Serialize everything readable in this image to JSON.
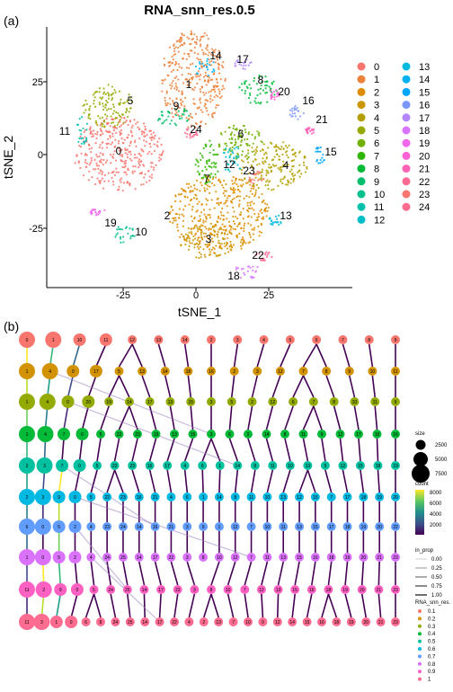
{
  "panel_a": {
    "label": "(a)",
    "title": "RNA_snn_res.0.5",
    "xlabel": "tSNE_1",
    "ylabel": "tSNE_2",
    "xticks": [
      "-25",
      "0",
      "25"
    ],
    "yticks": [
      "25",
      "0",
      "-25"
    ],
    "colors": [
      "#F8766D",
      "#EC823C",
      "#DD8D00",
      "#CA9700",
      "#B3A000",
      "#97A900",
      "#71B000",
      "#2FB600",
      "#00BA38",
      "#00BE6C",
      "#00C08E",
      "#00C0AC",
      "#00BEC8",
      "#00BADE",
      "#00B2F3",
      "#00A6FF",
      "#7C96FF",
      "#B385FF",
      "#D874FD",
      "#EF67EB",
      "#FD61D3",
      "#FF63B6",
      "#FF6B94",
      "#F8766D",
      "#FF6C91"
    ],
    "legend": [
      "0",
      "1",
      "2",
      "3",
      "4",
      "5",
      "6",
      "7",
      "8",
      "9",
      "10",
      "11",
      "12",
      "13",
      "14",
      "15",
      "16",
      "17",
      "18",
      "19",
      "20",
      "21",
      "22",
      "23",
      "24"
    ],
    "cluster_labels": [
      "0",
      "1",
      "2",
      "3",
      "4",
      "5",
      "6",
      "7",
      "8",
      "9",
      "10",
      "11",
      "12",
      "13",
      "14",
      "15",
      "16",
      "17",
      "18",
      "19",
      "20",
      "21",
      "22",
      "23",
      "24"
    ]
  },
  "panel_b": {
    "label": "(b)",
    "levels": [
      "0.1",
      "0.2",
      "0.3",
      "0.4",
      "0.5",
      "0.6",
      "0.7",
      "0.8",
      "0.9",
      "1"
    ],
    "level_colors": [
      "#F8766D",
      "#D39200",
      "#93AA00",
      "#00BA38",
      "#00C19F",
      "#00B9E3",
      "#619CFF",
      "#DB72FB",
      "#FF61C3",
      "#FF6C91"
    ],
    "legend_size": {
      "title": "size",
      "values": [
        "2500",
        "5000",
        "7500"
      ]
    },
    "legend_count": {
      "title": "count",
      "values": [
        "8000",
        "6000",
        "4000",
        "2000"
      ],
      "gradient": [
        "#FDE725",
        "#5DC863",
        "#21908C",
        "#3B528B",
        "#440154"
      ]
    },
    "legend_prop": {
      "title": "in_prop",
      "values": [
        "0.00",
        "0.25",
        "0.50",
        "0.75",
        "1.00"
      ]
    },
    "legend_res": {
      "title": "RNA_snn_res."
    },
    "rows": [
      [
        "0",
        "1",
        "10",
        "11",
        "12",
        "13",
        "14",
        "2",
        "3",
        "4",
        "5",
        "6",
        "7",
        "8",
        "9"
      ],
      [
        "1",
        "4",
        "0",
        "17",
        "5",
        "13",
        "14",
        "18",
        "16",
        "2",
        "3",
        "12",
        "7",
        "8",
        "9",
        "10",
        "11"
      ],
      [
        "1",
        "4",
        "0",
        "20",
        "19",
        "14",
        "17",
        "13",
        "15",
        "3",
        "5",
        "2",
        "12",
        "6",
        "7",
        "8",
        "10",
        "11",
        "9"
      ],
      [
        "1",
        "4",
        "7",
        "0",
        "5",
        "22",
        "23",
        "19",
        "13",
        "15",
        "3",
        "6",
        "2",
        "14",
        "8",
        "11",
        "9",
        "12",
        "17",
        "10",
        "16"
      ],
      [
        "2",
        "3",
        "7",
        "0",
        "5",
        "22",
        "23",
        "16",
        "17",
        "4",
        "6",
        "1",
        "14",
        "8",
        "11",
        "10",
        "13",
        "9",
        "12",
        "15",
        "18",
        "19"
      ],
      [
        "2",
        "3",
        "9",
        "0",
        "5",
        "22",
        "23",
        "16",
        "21",
        "4",
        "6",
        "1",
        "14",
        "8",
        "11",
        "10",
        "13",
        "12",
        "15",
        "7",
        "17",
        "18",
        "19",
        "20"
      ],
      [
        "6",
        "0",
        "5",
        "2",
        "4",
        "23",
        "24",
        "14",
        "16",
        "21",
        "3",
        "9",
        "1",
        "12",
        "7",
        "10",
        "11",
        "13",
        "15",
        "17",
        "18",
        "19",
        "20",
        "22"
      ],
      [
        "1",
        "0",
        "5",
        "2",
        "4",
        "24",
        "25",
        "14",
        "17",
        "22",
        "3",
        "8",
        "10",
        "12",
        "7",
        "11",
        "13",
        "15",
        "16",
        "18",
        "19",
        "20",
        "21",
        "23"
      ],
      [
        "11",
        "2",
        "9",
        "0",
        "5",
        "24",
        "25",
        "14",
        "17",
        "22",
        "3",
        "8",
        "10",
        "7",
        "12",
        "13",
        "15",
        "16",
        "18",
        "19",
        "20",
        "21",
        "23"
      ],
      [
        "11",
        "3",
        "1",
        "0",
        "6",
        "8",
        "24",
        "25",
        "14",
        "17",
        "22",
        "4",
        "2",
        "13",
        "7",
        "10",
        "9",
        "12",
        "14",
        "15",
        "16",
        "18",
        "19",
        "20",
        "21",
        "23"
      ]
    ]
  }
}
